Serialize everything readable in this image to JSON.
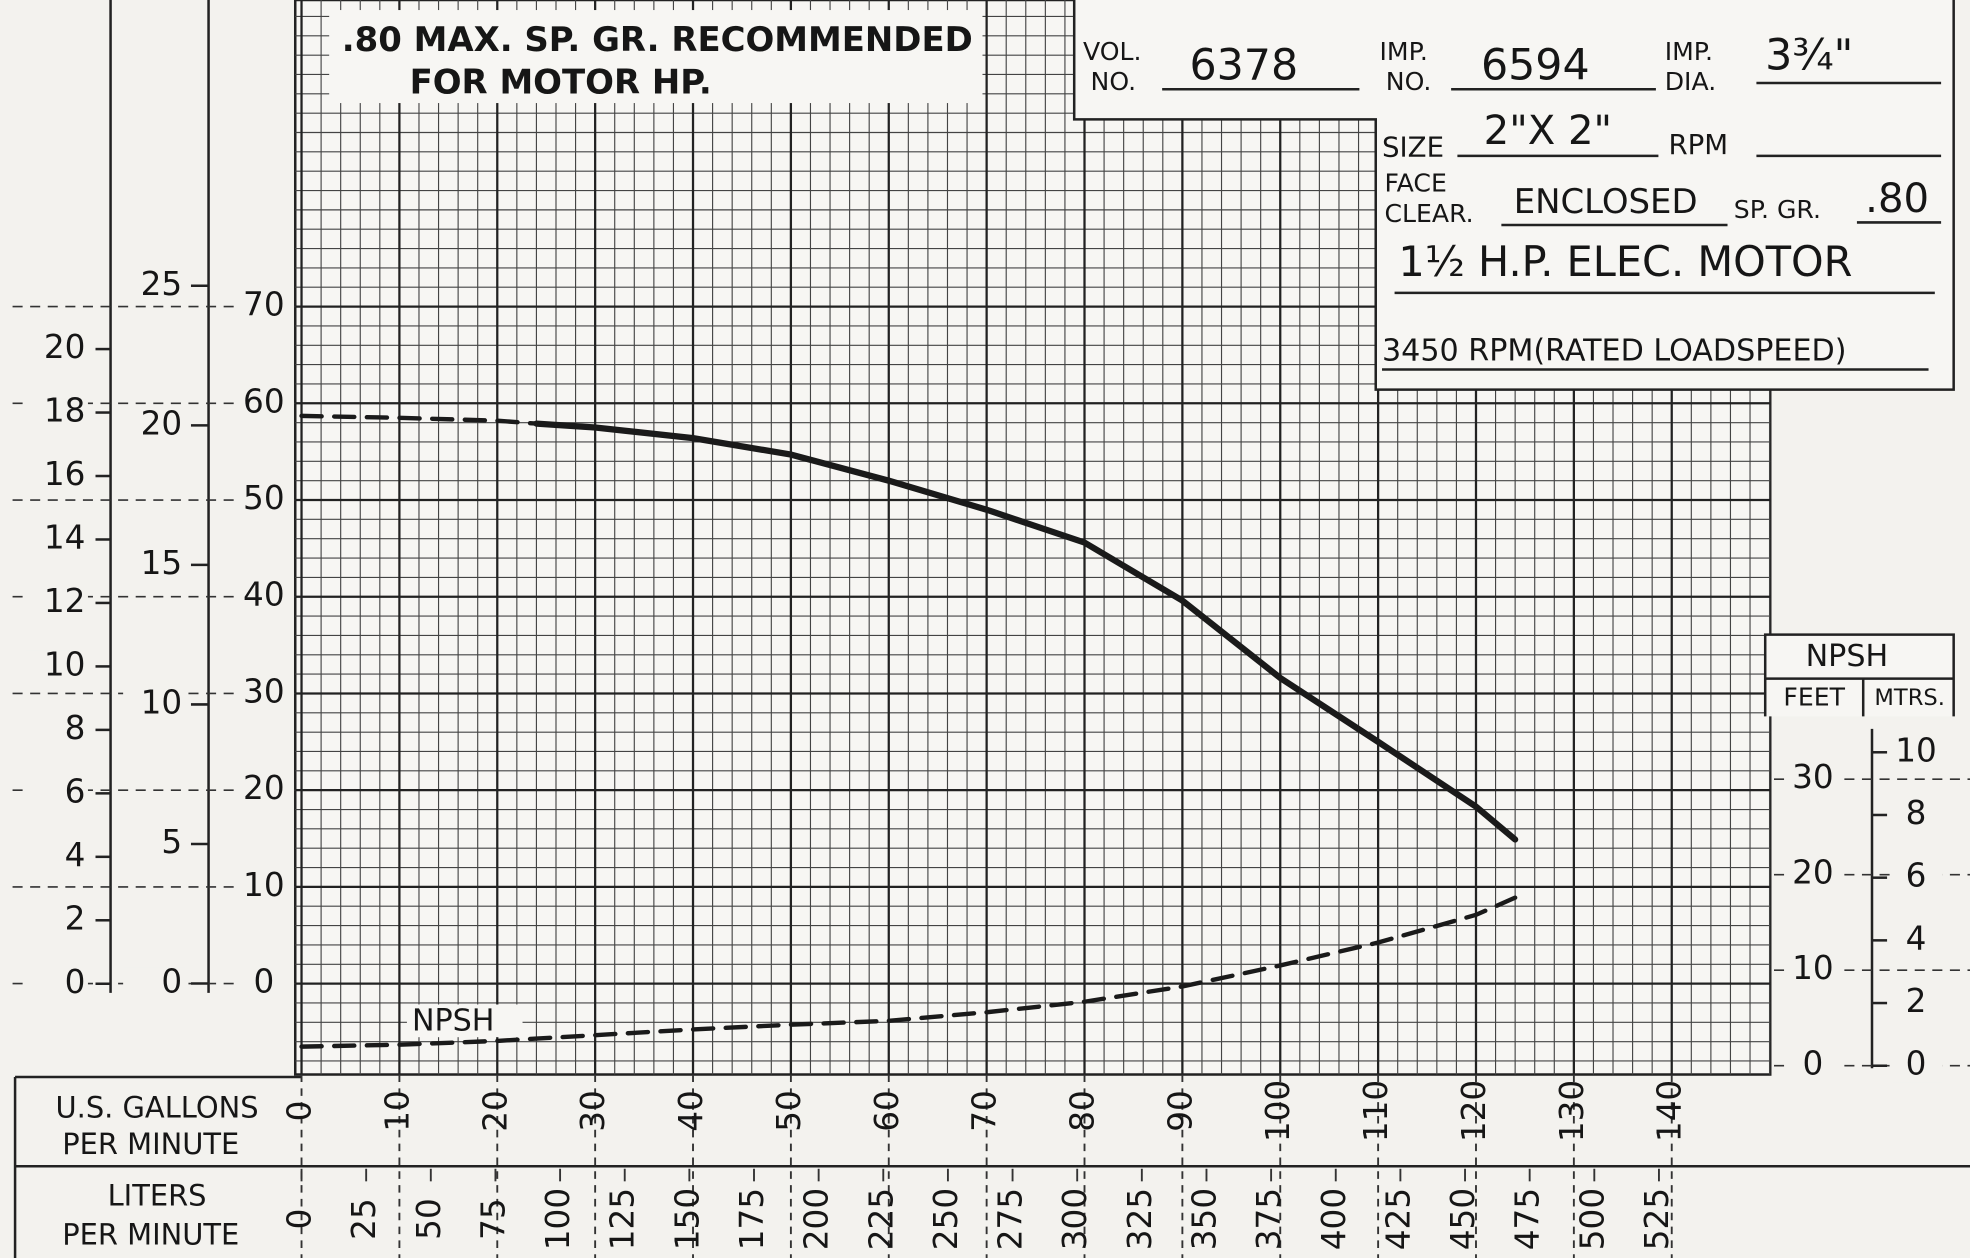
{
  "chart_data": {
    "type": "line",
    "annotations": [
      ".80 MAX. SP. GR. RECOMMENDED",
      "FOR MOTOR HP."
    ],
    "info": {
      "vol_label": [
        "VOL.",
        "NO."
      ],
      "vol": "6378",
      "imp_label": [
        "IMP.",
        "NO."
      ],
      "imp": "6594",
      "dia_label": [
        "IMP.",
        "DIA."
      ],
      "dia": "3¾\"",
      "size_label": "SIZE",
      "size": "2\"X 2\"",
      "rpm_label": "RPM",
      "face_label": [
        "FACE",
        "CLEAR."
      ],
      "face": "ENCLOSED",
      "spgr_label": "SP. GR.",
      "spgr": ".80",
      "motor": "1½ H.P. ELEC. MOTOR",
      "speed": "3450 RPM(RATED LOADSPEED)"
    },
    "xlabel": [
      "U.S. GALLONS",
      "PER MINUTE"
    ],
    "xlim": [
      0,
      150
    ],
    "xticks": [
      0,
      10,
      20,
      30,
      40,
      50,
      60,
      70,
      80,
      90,
      100,
      110,
      120,
      130,
      140
    ],
    "x2label": [
      "LITERS",
      "PER MINUTE"
    ],
    "x2lim": [
      0,
      567.8
    ],
    "x2ticks": [
      0,
      25,
      50,
      75,
      100,
      125,
      150,
      175,
      200,
      225,
      250,
      275,
      300,
      325,
      350,
      375,
      400,
      425,
      450,
      475,
      500,
      525
    ],
    "ylim": [
      -9.4,
      101.7
    ],
    "yticks": [
      0,
      10,
      20,
      30,
      40,
      50,
      60,
      70
    ],
    "y_meters": {
      "lim": [
        -2.86,
        31.0
      ],
      "ticks": [
        0,
        2,
        4,
        6,
        8,
        10,
        12,
        14,
        16,
        18,
        20
      ]
    },
    "y_psi": {
      "lim": [
        -3.26,
        35.24
      ],
      "ticks": [
        0,
        5,
        10,
        15,
        20,
        25
      ]
    },
    "y2label": "NPSH",
    "y2units": [
      "FEET",
      "MTRS."
    ],
    "y2lim": [
      -0.92,
      111.6
    ],
    "y2ticks": [
      0,
      10,
      20,
      30
    ],
    "y2_meters": {
      "lim": [
        -0.28,
        34.0
      ],
      "ticks": [
        0,
        2,
        4,
        6,
        8,
        10
      ]
    },
    "grid": true,
    "series": [
      {
        "x": [
          0,
          10,
          20,
          24
        ],
        "values": [
          58.7,
          58.5,
          58.2,
          57.9
        ],
        "color": "#1a1a1a",
        "dashed": true
      },
      {
        "x": [
          24,
          30,
          40,
          50,
          60,
          70,
          80,
          90,
          100,
          110,
          120,
          124
        ],
        "values": [
          57.9,
          57.5,
          56.4,
          54.7,
          52,
          49,
          45.6,
          39.6,
          31.6,
          25,
          18.3,
          14.9
        ],
        "color": "#1a1a1a",
        "dashed": false
      },
      {
        "name": "NPSH",
        "axis": "y2",
        "x": [
          0,
          10,
          20,
          30,
          40,
          50,
          60,
          70,
          80,
          90,
          100,
          110,
          120,
          124
        ],
        "values": [
          2.0,
          2.2,
          2.6,
          3.2,
          3.8,
          4.3,
          4.7,
          5.6,
          6.7,
          8.3,
          10.5,
          12.9,
          15.8,
          17.6
        ],
        "color": "#1a1a1a",
        "dashed": true
      }
    ]
  }
}
